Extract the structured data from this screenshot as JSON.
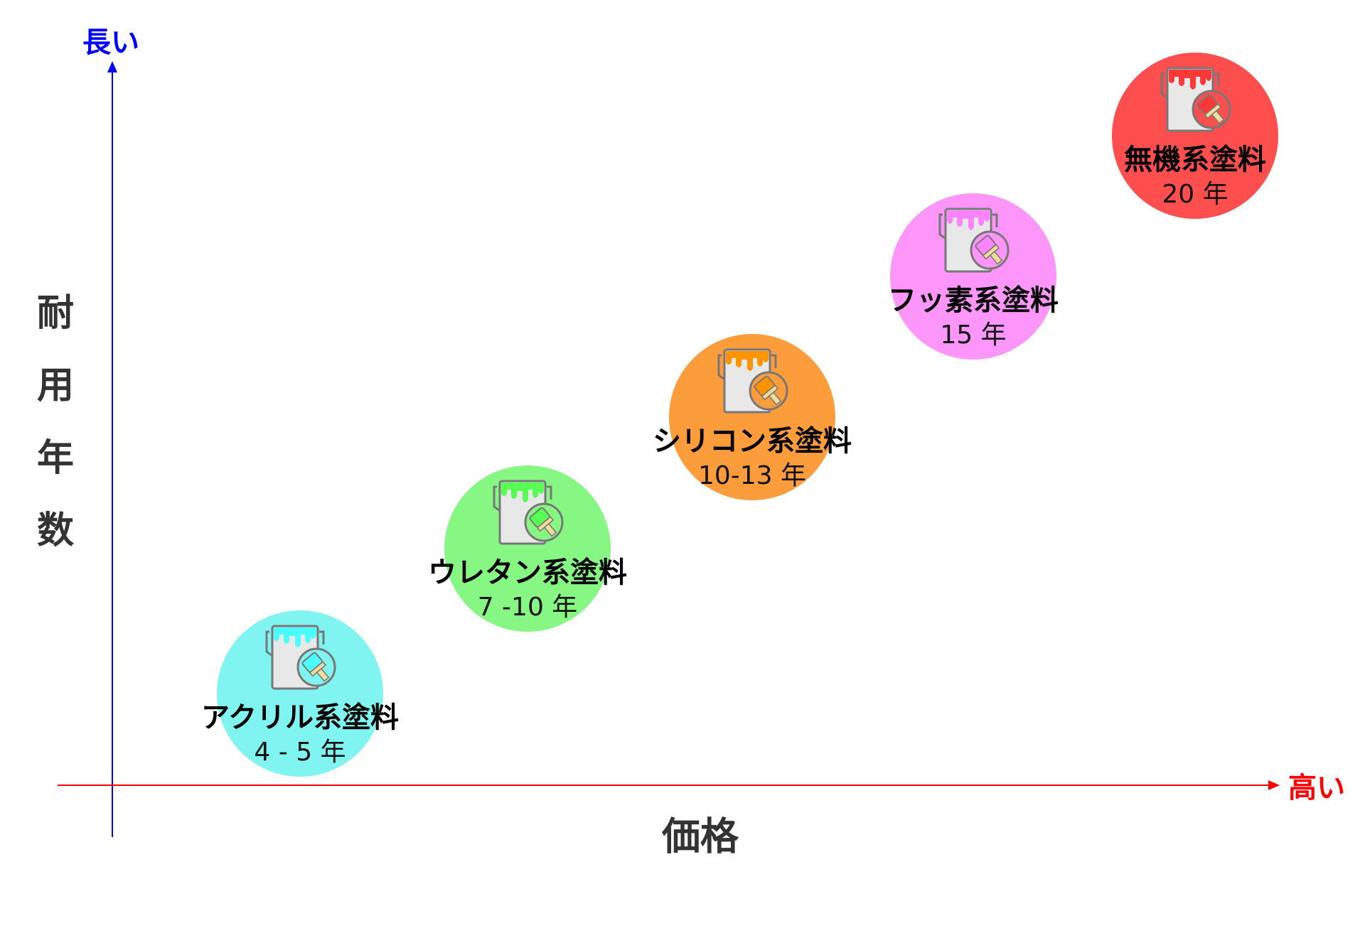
{
  "y_axis": {
    "label": "耐用年数",
    "end_label": "長い",
    "color": "#0000ff"
  },
  "x_axis": {
    "label": "価格",
    "end_label": "高い",
    "color": "#ff0000"
  },
  "items": [
    {
      "name": "アクリル系塗料",
      "years": "4 - 5 年",
      "color": "#80f4f0",
      "icon": "paint-bucket-icon"
    },
    {
      "name": "ウレタン系塗料",
      "years": "7 -10 年",
      "color": "#86f783",
      "icon": "paint-bucket-icon"
    },
    {
      "name": "シリコン系塗料",
      "years": "10-13 年",
      "color": "#fd9c3b",
      "icon": "paint-bucket-icon"
    },
    {
      "name": "フッ素系塗料",
      "years": "15 年",
      "color": "#fd95fb",
      "icon": "paint-bucket-icon"
    },
    {
      "name": "無機系塗料",
      "years": "20 年",
      "color": "#fe4e4e",
      "icon": "paint-bucket-icon"
    }
  ]
}
